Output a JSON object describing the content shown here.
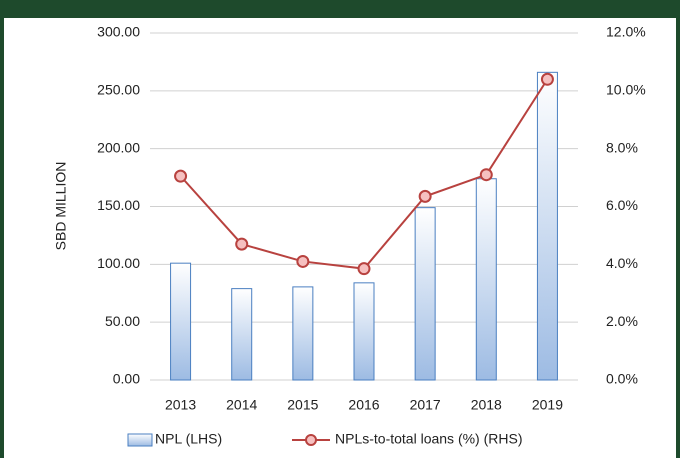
{
  "chart_data": {
    "type": "bar_line",
    "y_label": "SBD MILLION",
    "categories": [
      "2013",
      "2014",
      "2015",
      "2016",
      "2017",
      "2018",
      "2019"
    ],
    "series": [
      {
        "name": "NPL (LHS)",
        "type": "bar",
        "color": "#4a7fc1",
        "values": [
          101,
          79,
          80.5,
          84,
          149,
          174,
          266
        ]
      },
      {
        "name": "NPLs-to-total loans (%) (RHS)",
        "type": "line",
        "axis": "y2",
        "color": "#b8423f",
        "values": [
          7.05,
          4.7,
          4.1,
          3.85,
          6.35,
          7.1,
          10.4
        ]
      }
    ],
    "ylim": [
      0,
      300
    ],
    "yticks": [
      {
        "value": 0,
        "label": "0.00"
      },
      {
        "value": 50,
        "label": "50.00"
      },
      {
        "value": 100,
        "label": "100.00"
      },
      {
        "value": 150,
        "label": "150.00"
      },
      {
        "value": 200,
        "label": "200.00"
      },
      {
        "value": 250,
        "label": "250.00"
      },
      {
        "value": 300,
        "label": "300.00"
      }
    ],
    "y2lim": [
      0,
      12
    ],
    "y2ticks": [
      {
        "value": 0,
        "label": "0.0%"
      },
      {
        "value": 2,
        "label": "2.0%"
      },
      {
        "value": 4,
        "label": "4.0%"
      },
      {
        "value": 6,
        "label": "6.0%"
      },
      {
        "value": 8,
        "label": "8.0%"
      },
      {
        "value": 10,
        "label": "10.0%"
      },
      {
        "value": 12,
        "label": "12.0%"
      }
    ],
    "grid": true
  }
}
